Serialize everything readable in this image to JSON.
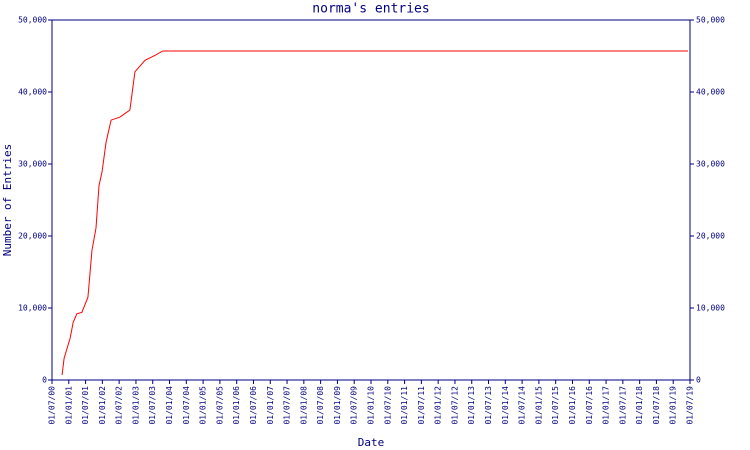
{
  "chart_data": {
    "type": "line",
    "title": "norma's entries",
    "y_label": "Number of Entries",
    "x_label": "Date",
    "x": [
      2000.8,
      2000.86,
      2001.04,
      2001.13,
      2001.24,
      2001.39,
      2001.57,
      2001.69,
      2001.81,
      2001.9,
      2001.99,
      2002.11,
      2002.26,
      2002.52,
      2002.82,
      2002.97,
      2003.27,
      2003.57,
      2003.8,
      2019.44
    ],
    "series": [
      {
        "color": "#ff0000",
        "values": [
          700,
          3000,
          5800,
          8000,
          9200,
          9400,
          11500,
          18000,
          21100,
          27000,
          28900,
          33000,
          36100,
          36500,
          37500,
          42800,
          44400,
          45100,
          45700,
          45700
        ]
      }
    ],
    "xlim": [
      2000.5,
      2019.5
    ],
    "xticks": [
      {
        "value": 2000.5,
        "label": "01/07/00"
      },
      {
        "value": 2001,
        "label": "01/01/01"
      },
      {
        "value": 2001.5,
        "label": "01/07/01"
      },
      {
        "value": 2002,
        "label": "01/01/02"
      },
      {
        "value": 2002.5,
        "label": "01/07/02"
      },
      {
        "value": 2003,
        "label": "01/01/03"
      },
      {
        "value": 2003.5,
        "label": "01/07/03"
      },
      {
        "value": 2004,
        "label": "01/01/04"
      },
      {
        "value": 2004.5,
        "label": "01/07/04"
      },
      {
        "value": 2005,
        "label": "01/01/05"
      },
      {
        "value": 2005.5,
        "label": "01/07/05"
      },
      {
        "value": 2006,
        "label": "01/01/06"
      },
      {
        "value": 2006.5,
        "label": "01/07/06"
      },
      {
        "value": 2007,
        "label": "01/01/07"
      },
      {
        "value": 2007.5,
        "label": "01/07/07"
      },
      {
        "value": 2008,
        "label": "01/01/08"
      },
      {
        "value": 2008.5,
        "label": "01/07/08"
      },
      {
        "value": 2009,
        "label": "01/01/09"
      },
      {
        "value": 2009.5,
        "label": "01/07/09"
      },
      {
        "value": 2010,
        "label": "01/01/10"
      },
      {
        "value": 2010.5,
        "label": "01/07/10"
      },
      {
        "value": 2011,
        "label": "01/01/11"
      },
      {
        "value": 2011.5,
        "label": "01/07/11"
      },
      {
        "value": 2012,
        "label": "01/01/12"
      },
      {
        "value": 2012.5,
        "label": "01/07/12"
      },
      {
        "value": 2013,
        "label": "01/01/13"
      },
      {
        "value": 2013.5,
        "label": "01/07/13"
      },
      {
        "value": 2014,
        "label": "01/01/14"
      },
      {
        "value": 2014.5,
        "label": "01/07/14"
      },
      {
        "value": 2015,
        "label": "01/01/15"
      },
      {
        "value": 2015.5,
        "label": "01/07/15"
      },
      {
        "value": 2016,
        "label": "01/01/16"
      },
      {
        "value": 2016.5,
        "label": "01/07/16"
      },
      {
        "value": 2017,
        "label": "01/01/17"
      },
      {
        "value": 2017.5,
        "label": "01/07/17"
      },
      {
        "value": 2018,
        "label": "01/01/18"
      },
      {
        "value": 2018.5,
        "label": "01/07/18"
      },
      {
        "value": 2019,
        "label": "01/01/19"
      },
      {
        "value": 2019.5,
        "label": "01/07/19"
      }
    ],
    "ylim": [
      0,
      50000
    ],
    "yticks": [
      0,
      {
        "value": 10000,
        "label": "10,000"
      },
      {
        "value": 20000,
        "label": "20,000"
      },
      {
        "value": 30000,
        "label": "30,000"
      },
      {
        "value": 40000,
        "label": "40,000"
      },
      {
        "value": 50000,
        "label": "50,000"
      }
    ]
  }
}
